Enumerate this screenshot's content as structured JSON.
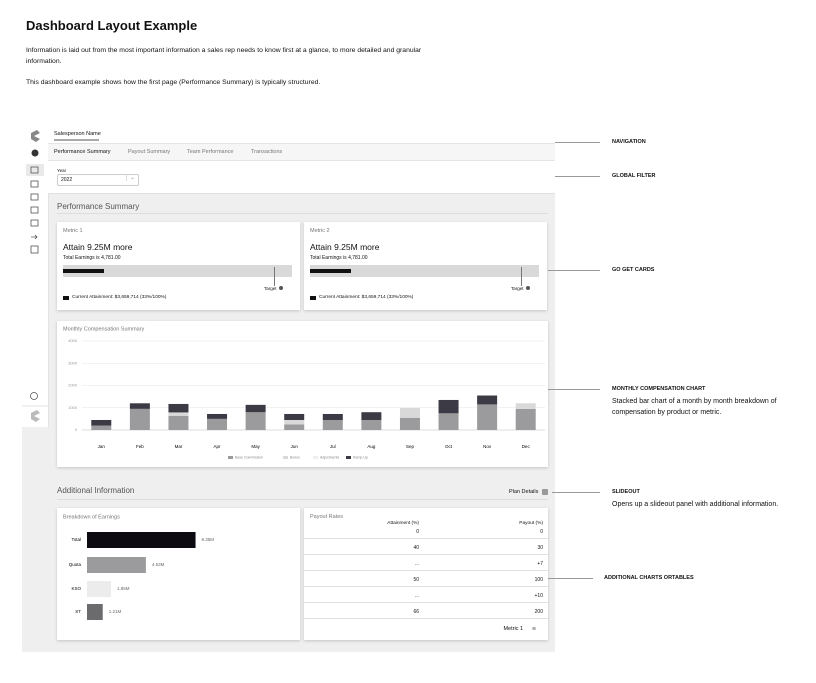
{
  "header": {
    "title": "Dashboard Layout Example",
    "paragraphs": [
      "Information is laid out from the most important information a sales rep needs to know first at a glance, to more detailed and granular information.",
      "This dashboard example shows how the first page (Performance Summary) is typically structured."
    ]
  },
  "dashboard": {
    "user": "Salesperson Name",
    "tabs": [
      "Performance Summary",
      "Payout Summary",
      "Team Performance",
      "Transactions"
    ],
    "filter": {
      "label": "Year",
      "value": "2022"
    },
    "section_title": "Performance Summary",
    "cards": [
      {
        "name": "Metric 1",
        "headline": "Attain 9.25M more",
        "subtext": "Total Earnings is 4,781.00",
        "target_label": "Target",
        "legend": "Current Attainment: $3,659,714 (33%/100%)"
      },
      {
        "name": "Metric 2",
        "headline": "Attain 9.25M more",
        "subtext": "Total Earnings is 4,781.00",
        "target_label": "Target",
        "legend": "Current Attainment: $3,659,714 (33%/100%)"
      }
    ],
    "monthly_chart": {
      "type": "bar",
      "stacked": true,
      "title": "Monthly Compensation Summary",
      "categories": [
        "Jan",
        "Feb",
        "Mar",
        "Apr",
        "May",
        "Jun",
        "Jul",
        "Aug",
        "Sep",
        "Oct",
        "Nov",
        "Dec"
      ],
      "series": [
        {
          "name": "Base Commission",
          "color": "#9b9b9d",
          "values": [
            200,
            950,
            640,
            500,
            800,
            250,
            450,
            450,
            550,
            750,
            1150,
            950
          ]
        },
        {
          "name": "Bonus",
          "color": "#d9d9d9",
          "values": [
            0,
            0,
            150,
            0,
            0,
            200,
            0,
            0,
            450,
            0,
            0,
            250
          ]
        },
        {
          "name": "Adjustments",
          "color": "#efefef",
          "values": [
            0,
            0,
            0,
            0,
            0,
            0,
            0,
            0,
            0,
            0,
            0,
            0
          ]
        },
        {
          "name": "Ramp Up",
          "color": "#3b3a45",
          "values": [
            250,
            250,
            380,
            220,
            330,
            270,
            270,
            350,
            0,
            600,
            400,
            0
          ]
        }
      ],
      "ylim": [
        0,
        4000
      ],
      "yticks": [
        0,
        1000,
        2000,
        3000,
        4000
      ],
      "grid": true
    },
    "additional_title": "Additional Information",
    "slideout_button": "Plan Details",
    "breakdown_chart": {
      "type": "bar",
      "orientation": "horizontal",
      "title": "Breakdown of Earnings",
      "categories": [
        "Total",
        "Quota",
        "KSO",
        "ST"
      ],
      "values": [
        8.35,
        4.53,
        1.85,
        1.21
      ],
      "value_labels": [
        "8.35M",
        "4.53M",
        "1.85M",
        "1.21M"
      ],
      "colors": [
        "#0d0a12",
        "#9b9b9d",
        "#ececec",
        "#6b6b6e"
      ],
      "xlim": [
        0,
        9
      ]
    },
    "payout_table": {
      "title": "Payout Rates",
      "columns": [
        "Attainment (%)",
        "Payout (%)"
      ],
      "rows": [
        [
          "0",
          "0"
        ],
        [
          "40",
          "30"
        ],
        [
          "...",
          "+7"
        ],
        [
          "50",
          "100"
        ],
        [
          "...",
          "+10"
        ],
        [
          "66",
          "200"
        ]
      ],
      "footer": "Metric 1"
    }
  },
  "annotations": [
    {
      "label": "NAVIGATION"
    },
    {
      "label": "GLOBAL FILTER"
    },
    {
      "label": "GO GET CARDS"
    },
    {
      "label": "MONTHLY COMPENSATION CHART",
      "description": "Stacked bar chart of a month by month breakdown of compensation by product or metric."
    },
    {
      "label": "SLIDEOUT",
      "description": "Opens up a slideout panel with additional information."
    },
    {
      "label": "ADDITIONAL CHARTS ORTABLES"
    }
  ]
}
